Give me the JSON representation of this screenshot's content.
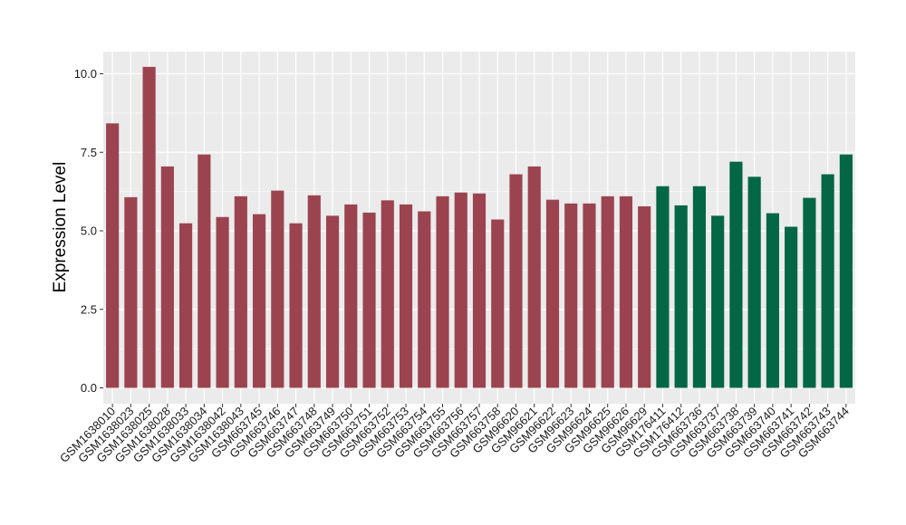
{
  "chart_data": {
    "type": "bar",
    "title": "",
    "xlabel": "",
    "ylabel": "Expression Level",
    "ylim": [
      -0.5,
      10.5
    ],
    "yticks": [
      0.0,
      2.5,
      5.0,
      7.5,
      10.0
    ],
    "ytick_labels": [
      "0.0",
      "2.5",
      "5.0",
      "7.5",
      "10.0"
    ],
    "grid": true,
    "legend": "none",
    "colors": {
      "group1": "#9B4450",
      "group2": "#036645",
      "panel": "#EBEBEB",
      "grid": "#FFFFFF"
    },
    "categories": [
      "GSM1638010",
      "GSM1638023",
      "GSM1638025",
      "GSM1638028",
      "GSM1638033",
      "GSM1638034",
      "GSM1638042",
      "GSM1638043",
      "GSM663745",
      "GSM663746",
      "GSM663747",
      "GSM663748",
      "GSM663749",
      "GSM663750",
      "GSM663751",
      "GSM663752",
      "GSM663753",
      "GSM663754",
      "GSM663755",
      "GSM663756",
      "GSM663757",
      "GSM663758",
      "GSM96620",
      "GSM96621",
      "GSM96622",
      "GSM96623",
      "GSM96624",
      "GSM96625",
      "GSM96626",
      "GSM96629",
      "GSM176411",
      "GSM176412",
      "GSM663736",
      "GSM663737",
      "GSM663738",
      "GSM663739",
      "GSM663740",
      "GSM663741",
      "GSM663742",
      "GSM663743",
      "GSM663744"
    ],
    "values": [
      8.42,
      6.07,
      10.22,
      7.05,
      5.24,
      7.43,
      5.44,
      6.1,
      5.53,
      6.28,
      5.24,
      6.13,
      5.48,
      5.84,
      5.58,
      5.97,
      5.84,
      5.62,
      6.1,
      6.22,
      6.19,
      5.36,
      6.8,
      7.05,
      5.99,
      5.87,
      5.87,
      6.1,
      6.1,
      5.78,
      6.42,
      5.81,
      6.42,
      5.48,
      7.2,
      6.72,
      5.56,
      5.13,
      6.05,
      6.8,
      7.43
    ],
    "groups": [
      1,
      1,
      1,
      1,
      1,
      1,
      1,
      1,
      1,
      1,
      1,
      1,
      1,
      1,
      1,
      1,
      1,
      1,
      1,
      1,
      1,
      1,
      1,
      1,
      1,
      1,
      1,
      1,
      1,
      1,
      2,
      2,
      2,
      2,
      2,
      2,
      2,
      2,
      2,
      2,
      2
    ]
  }
}
